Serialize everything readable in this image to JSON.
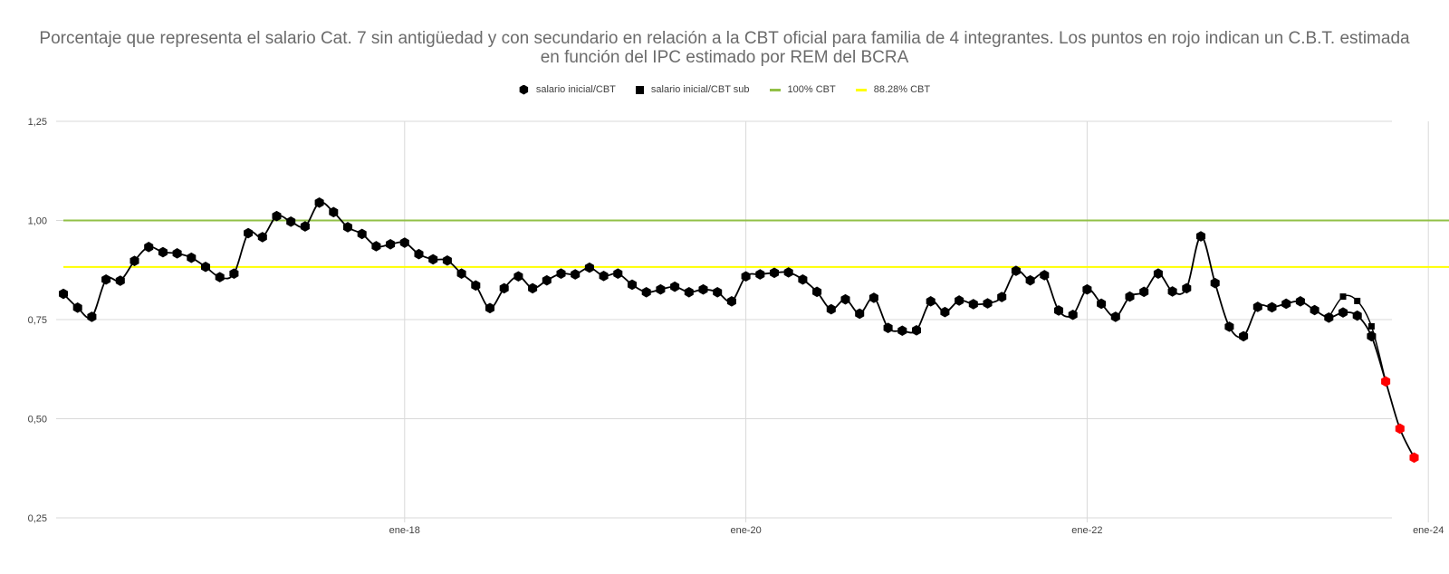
{
  "colors": {
    "salario": "#000000",
    "estimated": "#ff0000",
    "cbt100": "#92c047",
    "cbt8828": "#ffff00",
    "grid": "#d9d9d9"
  },
  "chart_data": {
    "type": "line",
    "title": "Porcentaje que representa el salario Cat. 7 sin antigüedad y con secundario en relación a la CBT oficial para familia de 4 integrantes. Los puntos en rojo indican un C.B.T. estimada en función del IPC estimado por REM del BCRA",
    "legend": [
      {
        "label": "salario inicial/CBT",
        "marker": "hexagon"
      },
      {
        "label": "salario inicial/CBT sub",
        "marker": "square"
      },
      {
        "label": "100% CBT",
        "marker": "line"
      },
      {
        "label": "88.28% CBT",
        "marker": "line"
      }
    ],
    "legend_position": "top",
    "grid": true,
    "ylim": [
      0.25,
      1.25
    ],
    "y_ticks": [
      "0,25",
      "0,50",
      "0,75",
      "1,00",
      "1,25"
    ],
    "y_tick_values": [
      0.25,
      0.5,
      0.75,
      1.0,
      1.25
    ],
    "x_ticks": [
      {
        "label": "ene-18",
        "month": 24
      },
      {
        "label": "ene-20",
        "month": 48
      },
      {
        "label": "ene-22",
        "month": 72
      },
      {
        "label": "ene-24",
        "month": 96
      }
    ],
    "x_start_month": 0,
    "x_end_month": 98,
    "reference_lines": [
      {
        "name": "100% CBT",
        "value": 1.0
      },
      {
        "name": "88.28% CBT",
        "value": 0.8828
      }
    ],
    "series": [
      {
        "name": "salario inicial/CBT",
        "marker": "hexagon",
        "values": [
          0.815,
          0.78,
          0.757,
          0.851,
          0.848,
          0.898,
          0.933,
          0.92,
          0.917,
          0.906,
          0.883,
          0.857,
          0.866,
          0.968,
          0.958,
          1.011,
          0.997,
          0.985,
          1.045,
          1.021,
          0.983,
          0.966,
          0.935,
          0.94,
          0.944,
          0.915,
          0.902,
          0.899,
          0.866,
          0.836,
          0.779,
          0.829,
          0.859,
          0.829,
          0.849,
          0.866,
          0.864,
          0.881,
          0.86,
          0.866,
          0.838,
          0.819,
          0.826,
          0.833,
          0.819,
          0.826,
          0.819,
          0.796,
          0.859,
          0.864,
          0.868,
          0.869,
          0.851,
          0.82,
          0.776,
          0.801,
          0.765,
          0.805,
          0.729,
          0.722,
          0.723,
          0.796,
          0.769,
          0.798,
          0.789,
          0.791,
          0.807,
          0.873,
          0.849,
          0.862,
          0.773,
          0.762,
          0.826,
          0.79,
          0.757,
          0.808,
          0.82,
          0.866,
          0.821,
          0.829,
          0.96,
          0.842,
          0.732,
          0.708,
          0.782,
          0.781,
          0.79,
          0.796,
          0.774,
          0.755,
          0.768,
          0.76,
          0.708,
          0.594,
          0.475,
          0.402
        ],
        "estimated_from_index": 93
      },
      {
        "name": "salario inicial/CBT sub",
        "marker": "square",
        "values": [
          {
            "index": 90,
            "y": 0.808
          },
          {
            "index": 91,
            "y": 0.797
          },
          {
            "index": 92,
            "y": 0.733
          }
        ]
      }
    ]
  }
}
